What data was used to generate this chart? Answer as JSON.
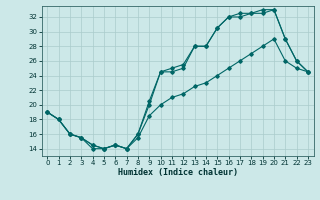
{
  "xlabel": "Humidex (Indice chaleur)",
  "bg_color": "#cce8e8",
  "grid_color": "#aacccc",
  "line_color": "#006666",
  "xlim": [
    -0.5,
    23.5
  ],
  "ylim": [
    13.0,
    33.5
  ],
  "yticks": [
    14,
    16,
    18,
    20,
    22,
    24,
    26,
    28,
    30,
    32
  ],
  "xticks": [
    0,
    1,
    2,
    3,
    4,
    5,
    6,
    7,
    8,
    9,
    10,
    11,
    12,
    13,
    14,
    15,
    16,
    17,
    18,
    19,
    20,
    21,
    22,
    23
  ],
  "line1_x": [
    0,
    1,
    2,
    3,
    4,
    5,
    6,
    7,
    8,
    9,
    10,
    11,
    12,
    13,
    14,
    15,
    16,
    17,
    18,
    19,
    20,
    21,
    22,
    23
  ],
  "line1_y": [
    19,
    18,
    16,
    15.5,
    14,
    14,
    14.5,
    14,
    16,
    20,
    24.5,
    24.5,
    25,
    28,
    28,
    30.5,
    32,
    32,
    32.5,
    32.5,
    33,
    29,
    26,
    24.5
  ],
  "line2_x": [
    0,
    1,
    2,
    3,
    4,
    5,
    6,
    7,
    8,
    9,
    10,
    11,
    12,
    13,
    14,
    15,
    16,
    17,
    18,
    19,
    20,
    21,
    22,
    23
  ],
  "line2_y": [
    19,
    18,
    16,
    15.5,
    14.5,
    14,
    14.5,
    14,
    16,
    20.5,
    24.5,
    25,
    25.5,
    28,
    28,
    30.5,
    32,
    32.5,
    32.5,
    33,
    33,
    29,
    26,
    24.5
  ],
  "line3_x": [
    0,
    1,
    2,
    3,
    4,
    5,
    6,
    7,
    8,
    9,
    10,
    11,
    12,
    13,
    14,
    15,
    16,
    17,
    18,
    19,
    20,
    21,
    22,
    23
  ],
  "line3_y": [
    19,
    18,
    16,
    15.5,
    14.5,
    14,
    14.5,
    14,
    15.5,
    18.5,
    20,
    21,
    21.5,
    22.5,
    23,
    24,
    25,
    26,
    27,
    28,
    29,
    26,
    25,
    24.5
  ],
  "tick_fontsize": 5,
  "label_fontsize": 6,
  "linewidth": 0.8,
  "markersize": 1.8
}
